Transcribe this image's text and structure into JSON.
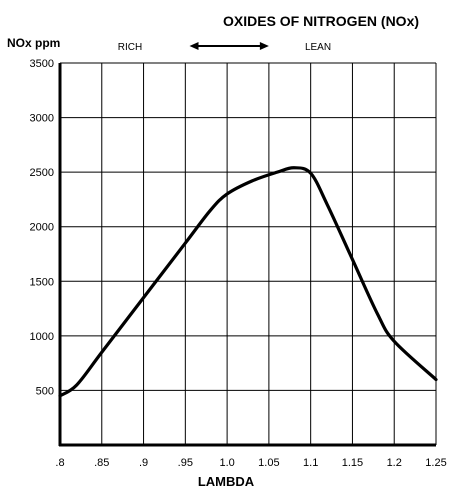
{
  "chart_data": {
    "type": "line",
    "title": "OXIDES OF NITROGEN (NOx)",
    "ylabel": "NOx ppm",
    "xlabel": "LAMBDA",
    "xlim": [
      0.8,
      1.25
    ],
    "ylim": [
      0,
      3500
    ],
    "x_ticks": [
      0.8,
      0.85,
      0.9,
      0.95,
      1.0,
      1.05,
      1.1,
      1.15,
      1.2,
      1.25
    ],
    "x_tick_labels": [
      ".8",
      ".85",
      ".9",
      ".95",
      "1.0",
      "1.05",
      "1.1",
      "1.15",
      "1.2",
      "1.25"
    ],
    "y_ticks": [
      500,
      1000,
      1500,
      2000,
      2500,
      3000,
      3500
    ],
    "y_tick_labels": [
      "500",
      "1000",
      "1500",
      "2000",
      "2500",
      "3000",
      "3500"
    ],
    "grid": true,
    "annotations": {
      "left_label": "RICH",
      "right_label": "LEAN",
      "arrow": {
        "from_x": 0.955,
        "to_x": 1.05,
        "double_headed": true
      }
    },
    "series": [
      {
        "x": [
          0.8,
          0.82,
          0.85,
          0.9,
          0.95,
          0.98,
          1.0,
          1.03,
          1.06,
          1.08,
          1.1,
          1.12,
          1.15,
          1.18,
          1.2,
          1.25
        ],
        "y": [
          450,
          550,
          850,
          1350,
          1850,
          2150,
          2300,
          2420,
          2500,
          2540,
          2490,
          2200,
          1700,
          1200,
          950,
          600
        ]
      }
    ]
  }
}
